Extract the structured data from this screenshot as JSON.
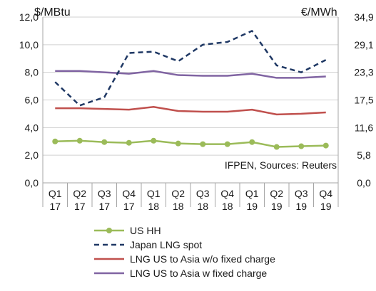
{
  "chart_data": {
    "type": "line",
    "left_axis_unit": "$/MBtu",
    "right_axis_unit": "€/MWh",
    "source_note": "IFPEN, Sources: Reuters",
    "categories": [
      [
        "Q1",
        "17"
      ],
      [
        "Q2",
        "17"
      ],
      [
        "Q3",
        "17"
      ],
      [
        "Q4",
        "17"
      ],
      [
        "Q1",
        "18"
      ],
      [
        "Q2",
        "18"
      ],
      [
        "Q3",
        "18"
      ],
      [
        "Q4",
        "18"
      ],
      [
        "Q1",
        "19"
      ],
      [
        "Q2",
        "19"
      ],
      [
        "Q3",
        "19"
      ],
      [
        "Q4",
        "19"
      ]
    ],
    "ylim": [
      0,
      12
    ],
    "y_ticks": [
      "0,0",
      "2,0",
      "4,0",
      "6,0",
      "8,0",
      "10,0",
      "12,0"
    ],
    "y2lim": [
      0,
      34.9
    ],
    "y2_ticks": [
      "0,0",
      "5,8",
      "11,6",
      "17,5",
      "23,3",
      "29,1",
      "34,9"
    ],
    "grid": true,
    "legend_position": "bottom",
    "series": [
      {
        "name": "US HH",
        "color": "#9bbb59",
        "style": "solid-markers",
        "values": [
          3.0,
          3.05,
          2.95,
          2.9,
          3.05,
          2.85,
          2.8,
          2.8,
          2.95,
          2.6,
          2.65,
          2.7
        ]
      },
      {
        "name": "Japan LNG spot",
        "color": "#1f3864",
        "style": "dashed",
        "values": [
          7.3,
          5.6,
          6.2,
          9.4,
          9.5,
          8.8,
          10.0,
          10.2,
          11.0,
          8.5,
          8.0,
          8.9
        ]
      },
      {
        "name": "LNG US to Asia w/o fixed charge",
        "color": "#c0504d",
        "style": "solid",
        "values": [
          5.4,
          5.4,
          5.35,
          5.3,
          5.5,
          5.2,
          5.15,
          5.15,
          5.3,
          4.95,
          5.0,
          5.1
        ]
      },
      {
        "name": "LNG US to Asia w fixed charge",
        "color": "#8064a2",
        "style": "solid",
        "values": [
          8.1,
          8.1,
          8.0,
          7.9,
          8.1,
          7.8,
          7.75,
          7.75,
          7.9,
          7.6,
          7.6,
          7.7
        ]
      }
    ]
  }
}
